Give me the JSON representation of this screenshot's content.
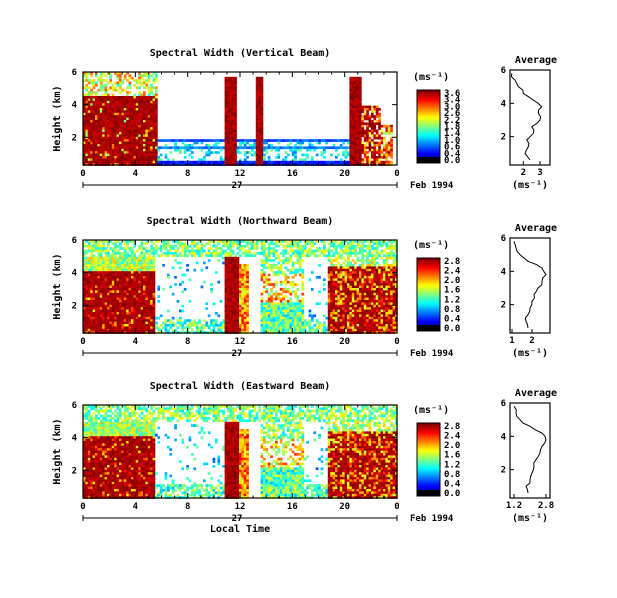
{
  "chart_data": [
    {
      "type": "heatmap",
      "title": "Spectral Width (Vertical Beam)",
      "ylabel": "Height (km)",
      "xlabel": "",
      "date_label": "Feb 1994",
      "day_label": "27",
      "x_ticks": [
        "0",
        "4",
        "8",
        "12",
        "16",
        "20",
        "0"
      ],
      "y_ticks": [
        "6",
        "4",
        "2"
      ],
      "colorbar": {
        "label": "(ms⁻¹)",
        "ticks": [
          "3.6",
          "3.4",
          "3.0",
          "2.6",
          "2.2",
          "1.8",
          "1.4",
          "1.0",
          "0.6",
          "0.4",
          "0.0"
        ],
        "range": [
          0,
          3.6
        ]
      },
      "profile": {
        "title": "Average",
        "xlabel": "(ms⁻¹)",
        "x_ticks": [
          "2",
          "3"
        ],
        "y_ticks": [
          "6",
          "4",
          "2"
        ],
        "xlim": [
          1.2,
          3.6
        ],
        "height_km": [
          0.6,
          1.0,
          1.4,
          1.8,
          2.2,
          2.6,
          3.0,
          3.4,
          3.8,
          4.2,
          4.6,
          5.0,
          5.4,
          5.8
        ],
        "width_ms": [
          2.4,
          2.1,
          2.3,
          2.2,
          2.6,
          2.5,
          3.0,
          2.9,
          3.1,
          2.6,
          2.0,
          1.7,
          1.5,
          1.3
        ]
      },
      "x_range_hours": [
        0,
        24
      ],
      "y_range_km": [
        0.3,
        6
      ]
    },
    {
      "type": "heatmap",
      "title": "Spectral Width (Northward Beam)",
      "ylabel": "Height (km)",
      "xlabel": "",
      "date_label": "Feb 1994",
      "day_label": "27",
      "x_ticks": [
        "0",
        "4",
        "8",
        "12",
        "16",
        "20",
        "0"
      ],
      "y_ticks": [
        "6",
        "4",
        "2"
      ],
      "colorbar": {
        "label": "(ms⁻¹)",
        "ticks": [
          "2.8",
          "2.4",
          "2.0",
          "1.6",
          "1.2",
          "0.8",
          "0.4",
          "0.0"
        ],
        "range": [
          0,
          2.8
        ]
      },
      "profile": {
        "title": "Average",
        "xlabel": "(ms⁻¹)",
        "x_ticks": [
          "1",
          "2"
        ],
        "y_ticks": [
          "6",
          "4",
          "2"
        ],
        "xlim": [
          0.9,
          2.9
        ],
        "height_km": [
          0.6,
          1.0,
          1.4,
          1.8,
          2.2,
          2.6,
          3.0,
          3.4,
          3.8,
          4.2,
          4.6,
          5.0,
          5.4,
          5.8
        ],
        "width_ms": [
          1.8,
          1.7,
          1.8,
          1.9,
          2.0,
          2.1,
          2.3,
          2.5,
          2.7,
          2.5,
          1.8,
          1.4,
          1.2,
          1.1
        ]
      },
      "x_range_hours": [
        0,
        24
      ],
      "y_range_km": [
        0.3,
        6
      ]
    },
    {
      "type": "heatmap",
      "title": "Spectral Width (Eastward Beam)",
      "ylabel": "Height (km)",
      "xlabel": "Local Time",
      "date_label": "Feb 1994",
      "day_label": "27",
      "x_ticks": [
        "0",
        "4",
        "8",
        "12",
        "16",
        "20",
        "0"
      ],
      "y_ticks": [
        "6",
        "4",
        "2"
      ],
      "colorbar": {
        "label": "(ms⁻¹)",
        "ticks": [
          "2.8",
          "2.4",
          "2.0",
          "1.6",
          "1.2",
          "0.8",
          "0.4",
          "0.0"
        ],
        "range": [
          0,
          2.8
        ]
      },
      "profile": {
        "title": "Average",
        "xlabel": "(ms⁻¹)",
        "x_ticks": [
          "1.2",
          "2.8"
        ],
        "y_ticks": [
          "6",
          "4",
          "2"
        ],
        "xlim": [
          1.0,
          3.0
        ],
        "height_km": [
          0.6,
          1.0,
          1.4,
          1.8,
          2.2,
          2.6,
          3.0,
          3.4,
          3.8,
          4.2,
          4.6,
          5.0,
          5.4,
          5.8
        ],
        "width_ms": [
          1.9,
          1.8,
          2.0,
          2.1,
          2.2,
          2.3,
          2.5,
          2.6,
          2.8,
          2.6,
          2.0,
          1.5,
          1.3,
          1.2
        ]
      },
      "x_range_hours": [
        0,
        24
      ],
      "y_range_km": [
        0.3,
        6
      ]
    }
  ]
}
